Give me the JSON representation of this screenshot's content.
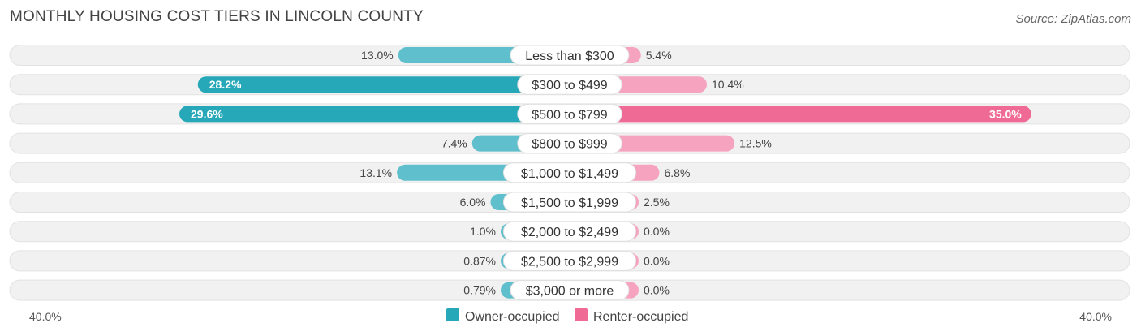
{
  "header": {
    "title": "MONTHLY HOUSING COST TIERS IN LINCOLN COUNTY",
    "source": "Source: ZipAtlas.com"
  },
  "colors": {
    "owner": "#5fbfcc",
    "owner_strong": "#27a8b8",
    "renter": "#f6a3c0",
    "renter_strong": "#f06a96",
    "track": "#f1f1f1"
  },
  "chart_data": {
    "type": "bar",
    "orientation": "diverging-horizontal",
    "title": "MONTHLY HOUSING COST TIERS IN LINCOLN COUNTY",
    "categories": [
      "Less than $300",
      "$300 to $499",
      "$500 to $799",
      "$800 to $999",
      "$1,000 to $1,499",
      "$1,500 to $1,999",
      "$2,000 to $2,499",
      "$2,500 to $2,999",
      "$3,000 or more"
    ],
    "series": [
      {
        "name": "Owner-occupied",
        "side": "left",
        "values": [
          13.0,
          28.2,
          29.6,
          7.4,
          13.1,
          6.0,
          1.0,
          0.87,
          0.79
        ],
        "labels": [
          "13.0%",
          "28.2%",
          "29.6%",
          "7.4%",
          "13.1%",
          "6.0%",
          "1.0%",
          "0.87%",
          "0.79%"
        ]
      },
      {
        "name": "Renter-occupied",
        "side": "right",
        "values": [
          5.4,
          10.4,
          35.0,
          12.5,
          6.8,
          2.5,
          0.0,
          0.0,
          0.0
        ],
        "labels": [
          "5.4%",
          "10.4%",
          "35.0%",
          "12.5%",
          "6.8%",
          "2.5%",
          "0.0%",
          "0.0%",
          "0.0%"
        ]
      }
    ],
    "xlim": [
      -40,
      40
    ],
    "axis_labels": {
      "left": "40.0%",
      "right": "40.0%"
    },
    "legend": {
      "placement": "bottom-center",
      "entries": [
        "Owner-occupied",
        "Renter-occupied"
      ]
    }
  }
}
